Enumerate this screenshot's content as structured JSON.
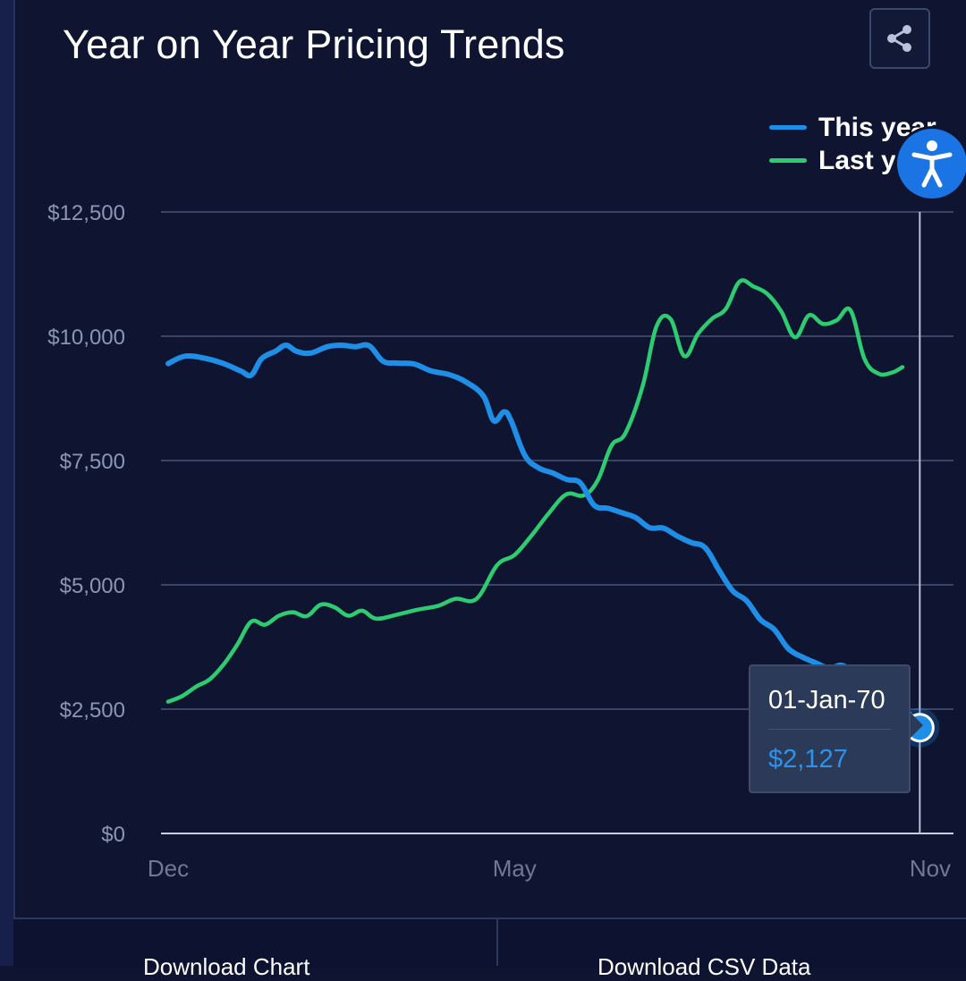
{
  "header": {
    "title": "Year on Year Pricing Trends"
  },
  "icons": {
    "share": "share-icon",
    "accessibility": "accessibility-icon"
  },
  "colors": {
    "background": "#0f1530",
    "this_year": "#1f8ee6",
    "last_year": "#2ecc71",
    "grid": "#3a4566",
    "axis_text": "#8a96b3"
  },
  "tooltip": {
    "date": "01-Jan-70",
    "value": "$2,127"
  },
  "footer": {
    "download_chart": "Download Chart",
    "download_csv": "Download CSV Data"
  },
  "chart_data": {
    "type": "line",
    "title": "Year on Year Pricing Trends",
    "xlabel": "",
    "ylabel": "",
    "ylim": [
      0,
      12500
    ],
    "yticks": [
      0,
      2500,
      5000,
      7500,
      10000,
      12500
    ],
    "ytick_labels": [
      "$0",
      "$2,500",
      "$5,000",
      "$7,500",
      "$10,000",
      "$12,500"
    ],
    "xtick_labels": [
      {
        "label": "Dec",
        "x": 0
      },
      {
        "label": "May",
        "x": 5
      },
      {
        "label": "Nov",
        "x": 11
      }
    ],
    "grid": true,
    "legend_position": "top-right",
    "series": [
      {
        "name": "This year",
        "color": "#1f8ee6",
        "points": [
          [
            0,
            9450
          ],
          [
            0.25,
            9600
          ],
          [
            0.55,
            9550
          ],
          [
            0.8,
            9450
          ],
          [
            1.05,
            9300
          ],
          [
            1.2,
            9220
          ],
          [
            1.35,
            9550
          ],
          [
            1.55,
            9700
          ],
          [
            1.7,
            9820
          ],
          [
            1.85,
            9700
          ],
          [
            2.05,
            9660
          ],
          [
            2.3,
            9790
          ],
          [
            2.5,
            9820
          ],
          [
            2.7,
            9790
          ],
          [
            2.9,
            9810
          ],
          [
            3.1,
            9500
          ],
          [
            3.3,
            9460
          ],
          [
            3.55,
            9440
          ],
          [
            3.8,
            9300
          ],
          [
            4.05,
            9230
          ],
          [
            4.3,
            9080
          ],
          [
            4.55,
            8800
          ],
          [
            4.7,
            8300
          ],
          [
            4.85,
            8480
          ],
          [
            4.95,
            8300
          ],
          [
            5.15,
            7600
          ],
          [
            5.35,
            7350
          ],
          [
            5.55,
            7250
          ],
          [
            5.75,
            7120
          ],
          [
            5.95,
            7050
          ],
          [
            6.15,
            6600
          ],
          [
            6.35,
            6540
          ],
          [
            6.55,
            6450
          ],
          [
            6.75,
            6350
          ],
          [
            6.95,
            6150
          ],
          [
            7.15,
            6140
          ],
          [
            7.35,
            5980
          ],
          [
            7.55,
            5850
          ],
          [
            7.75,
            5750
          ],
          [
            7.95,
            5300
          ],
          [
            8.15,
            4880
          ],
          [
            8.35,
            4680
          ],
          [
            8.55,
            4300
          ],
          [
            8.75,
            4100
          ],
          [
            8.95,
            3720
          ],
          [
            9.15,
            3550
          ],
          [
            9.35,
            3430
          ],
          [
            9.55,
            3320
          ],
          [
            9.75,
            3370
          ],
          [
            10.05,
            3050
          ],
          [
            10.3,
            2800
          ],
          [
            10.6,
            2550
          ],
          [
            10.85,
            2127
          ]
        ]
      },
      {
        "name": "Last year",
        "color": "#2ecc71",
        "points": [
          [
            0,
            2650
          ],
          [
            0.2,
            2760
          ],
          [
            0.4,
            2950
          ],
          [
            0.6,
            3100
          ],
          [
            0.8,
            3400
          ],
          [
            1.0,
            3800
          ],
          [
            1.2,
            4260
          ],
          [
            1.4,
            4200
          ],
          [
            1.6,
            4380
          ],
          [
            1.8,
            4450
          ],
          [
            2.0,
            4370
          ],
          [
            2.2,
            4600
          ],
          [
            2.4,
            4550
          ],
          [
            2.6,
            4380
          ],
          [
            2.8,
            4480
          ],
          [
            3.0,
            4320
          ],
          [
            3.3,
            4400
          ],
          [
            3.6,
            4500
          ],
          [
            3.9,
            4580
          ],
          [
            4.15,
            4720
          ],
          [
            4.45,
            4720
          ],
          [
            4.75,
            5400
          ],
          [
            5.0,
            5600
          ],
          [
            5.25,
            6000
          ],
          [
            5.5,
            6450
          ],
          [
            5.75,
            6820
          ],
          [
            6.0,
            6800
          ],
          [
            6.2,
            7100
          ],
          [
            6.4,
            7800
          ],
          [
            6.6,
            8050
          ],
          [
            6.85,
            9000
          ],
          [
            7.05,
            10200
          ],
          [
            7.25,
            10350
          ],
          [
            7.45,
            9600
          ],
          [
            7.65,
            10050
          ],
          [
            7.85,
            10350
          ],
          [
            8.05,
            10550
          ],
          [
            8.25,
            11100
          ],
          [
            8.45,
            11000
          ],
          [
            8.65,
            10850
          ],
          [
            8.85,
            10500
          ],
          [
            9.05,
            9980
          ],
          [
            9.25,
            10420
          ],
          [
            9.45,
            10250
          ],
          [
            9.65,
            10320
          ],
          [
            9.85,
            10520
          ],
          [
            10.05,
            9550
          ],
          [
            10.25,
            9250
          ],
          [
            10.45,
            9270
          ],
          [
            10.6,
            9380
          ]
        ]
      }
    ],
    "hover": {
      "series": "This year",
      "x": 10.85,
      "y": 2127
    }
  }
}
